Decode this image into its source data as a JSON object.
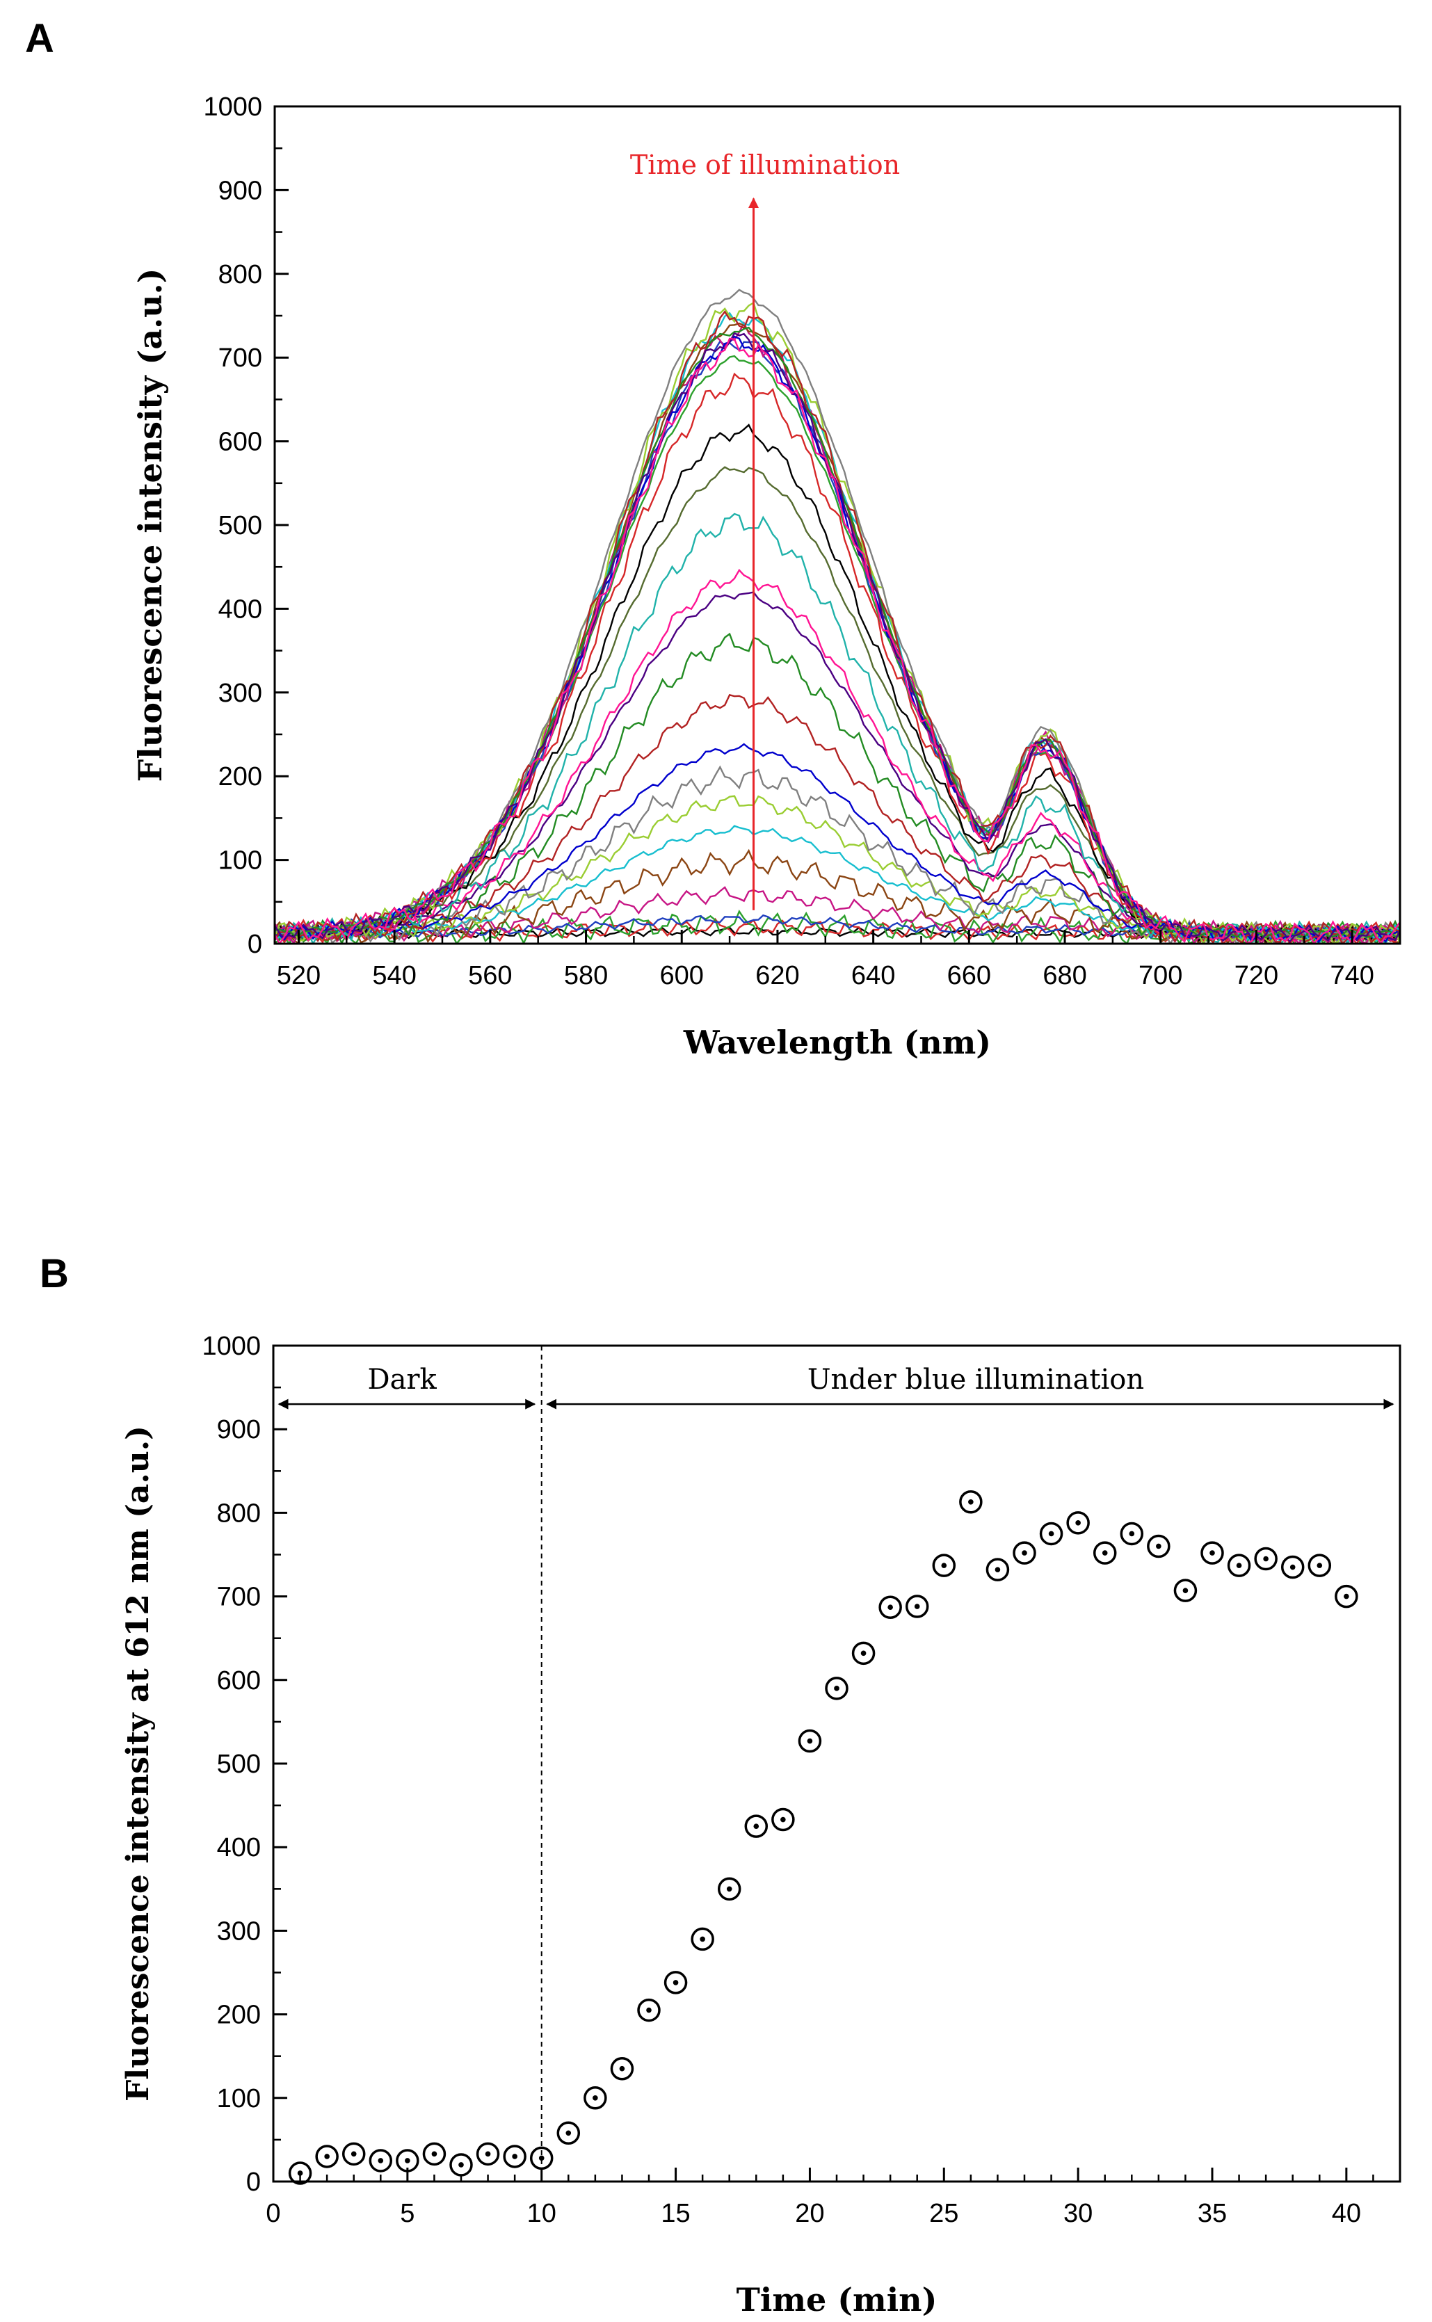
{
  "figure": {
    "panel_a_label": "A",
    "panel_b_label": "B"
  },
  "chart_data": [
    {
      "type": "line",
      "title": "",
      "xlabel": "Wavelength (nm)",
      "ylabel": "Fluorescence intensity (a.u.)",
      "xlim": [
        515,
        750
      ],
      "ylim": [
        0,
        1000
      ],
      "xticks": [
        520,
        540,
        560,
        580,
        600,
        620,
        640,
        660,
        680,
        700,
        720,
        740
      ],
      "yticks": [
        0,
        100,
        200,
        300,
        400,
        500,
        600,
        700,
        800,
        900,
        1000
      ],
      "annotation": "Time of illumination",
      "annotation_x": 615,
      "annotation_from_y": 40,
      "annotation_to_y": 890,
      "annotation_color": "#e8262a",
      "series_colors": [
        "#000000",
        "#d62728",
        "#2ca02c",
        "#1f3fbf",
        "#c71585",
        "#8b4513",
        "#17becf",
        "#9acd32",
        "#808080",
        "#0000cd",
        "#b22222",
        "#228b22",
        "#4b0082",
        "#ff1493",
        "#20b2aa",
        "#556b2f"
      ],
      "series_peaks": [
        15,
        20,
        25,
        30,
        60,
        100,
        140,
        175,
        205,
        240,
        300,
        370,
        430,
        450,
        520,
        585,
        630,
        690,
        720,
        740,
        750,
        760,
        770,
        780,
        800,
        740,
        770,
        755,
        745,
        735
      ]
    },
    {
      "type": "scatter",
      "title": "",
      "xlabel": "Time (min)",
      "ylabel": "Fluorescence intensity at 612 nm (a.u.)",
      "xlim": [
        0,
        42
      ],
      "ylim": [
        0,
        1000
      ],
      "xticks": [
        0,
        5,
        10,
        15,
        20,
        25,
        30,
        35,
        40
      ],
      "yticks": [
        0,
        100,
        200,
        300,
        400,
        500,
        600,
        700,
        800,
        900,
        1000
      ],
      "x": [
        1,
        2,
        3,
        4,
        5,
        6,
        7,
        8,
        9,
        10,
        11,
        12,
        13,
        14,
        15,
        16,
        17,
        18,
        19,
        20,
        21,
        22,
        23,
        24,
        25,
        26,
        27,
        28,
        29,
        30,
        31,
        32,
        33,
        34,
        35,
        36,
        37,
        38,
        39,
        40
      ],
      "y": [
        10,
        30,
        33,
        25,
        25,
        33,
        20,
        33,
        30,
        28,
        58,
        100,
        135,
        205,
        238,
        290,
        350,
        425,
        433,
        527,
        590,
        632,
        687,
        688,
        737,
        813,
        732,
        752,
        775,
        788,
        752,
        775,
        760,
        707,
        752,
        737,
        745,
        735,
        737,
        700
      ],
      "divider_x": 10,
      "region_labels": [
        {
          "label": "Dark",
          "from": 0,
          "to": 10
        },
        {
          "label": "Under blue illumination",
          "from": 10,
          "to": 42
        }
      ],
      "arrow_y": 930
    }
  ]
}
